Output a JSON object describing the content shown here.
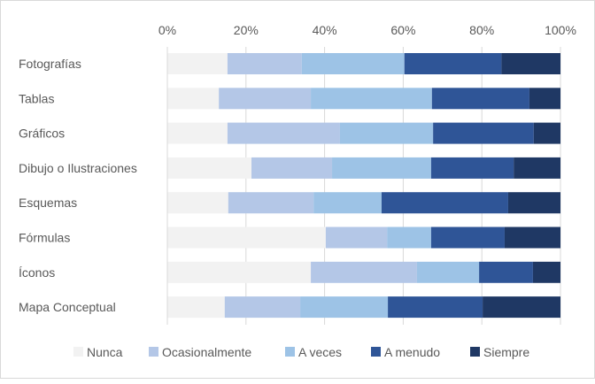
{
  "chart_data": {
    "type": "bar",
    "orientation": "horizontal",
    "stacked": "percent",
    "title": "",
    "xlabel": "",
    "ylabel": "",
    "xlim": [
      0,
      100
    ],
    "x_ticks": [
      "0%",
      "20%",
      "40%",
      "60%",
      "80%",
      "100%"
    ],
    "x_tick_values": [
      0,
      20,
      40,
      60,
      80,
      100
    ],
    "grid": true,
    "legend_position": "bottom",
    "categories": [
      "Fotografías",
      "Tablas",
      "Gráficos",
      "Dibujo o Ilustraciones",
      "Esquemas",
      "Fórmulas",
      "Íconos",
      "Mapa Conceptual"
    ],
    "series": [
      {
        "name": "Nunca",
        "color": "#f2f2f2",
        "values": [
          15.3,
          13.1,
          15.3,
          21.4,
          15.5,
          40.3,
          36.5,
          14.6
        ]
      },
      {
        "name": "Ocasionalmente",
        "color": "#b4c7e7",
        "values": [
          18.9,
          23.4,
          28.6,
          20.5,
          21.7,
          15.6,
          27.0,
          19.2
        ]
      },
      {
        "name": "A veces",
        "color": "#9dc3e6",
        "values": [
          26.1,
          30.8,
          23.7,
          25.2,
          17.3,
          11.2,
          15.8,
          22.3
        ]
      },
      {
        "name": "A menudo",
        "color": "#2f5597",
        "values": [
          24.7,
          24.8,
          25.6,
          21.0,
          32.2,
          18.7,
          13.7,
          24.1
        ]
      },
      {
        "name": "Siempre",
        "color": "#1f3864",
        "values": [
          15.0,
          7.9,
          6.8,
          11.9,
          13.3,
          14.2,
          7.0,
          19.8
        ]
      }
    ]
  }
}
